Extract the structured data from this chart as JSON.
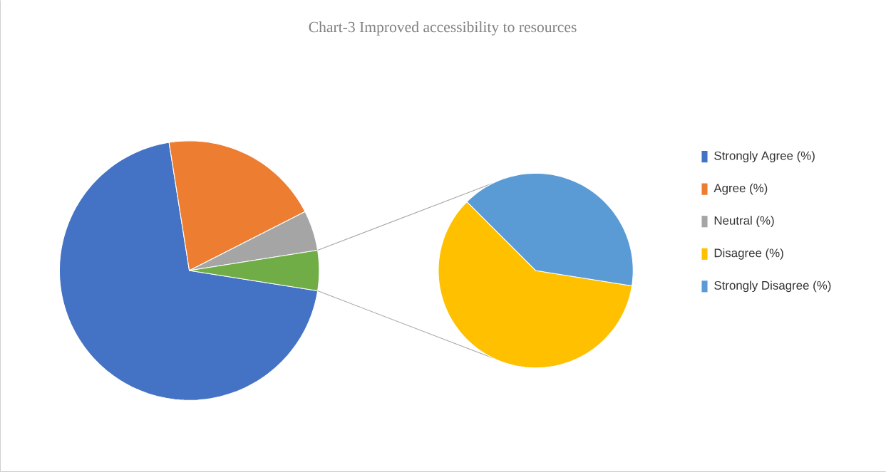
{
  "chart_data": [
    {
      "type": "pie",
      "title": "Chart-3 Improved accessibility to resources",
      "categories": [
        "Strongly Agree (%)",
        "Agree (%)",
        "Neutral (%)",
        null
      ],
      "values": [
        70,
        20,
        5,
        5
      ],
      "colors": [
        "#4472c4",
        "#ed7d31",
        "#a5a5a5",
        "#70ad47"
      ],
      "legend": "right"
    },
    {
      "type": "pie",
      "categories": [
        "Disagree (%)",
        "Strongly Disagree (%)"
      ],
      "values": [
        60,
        40
      ],
      "colors": [
        "#ffc000",
        "#5b9bd5"
      ],
      "legend": "right"
    }
  ]
}
